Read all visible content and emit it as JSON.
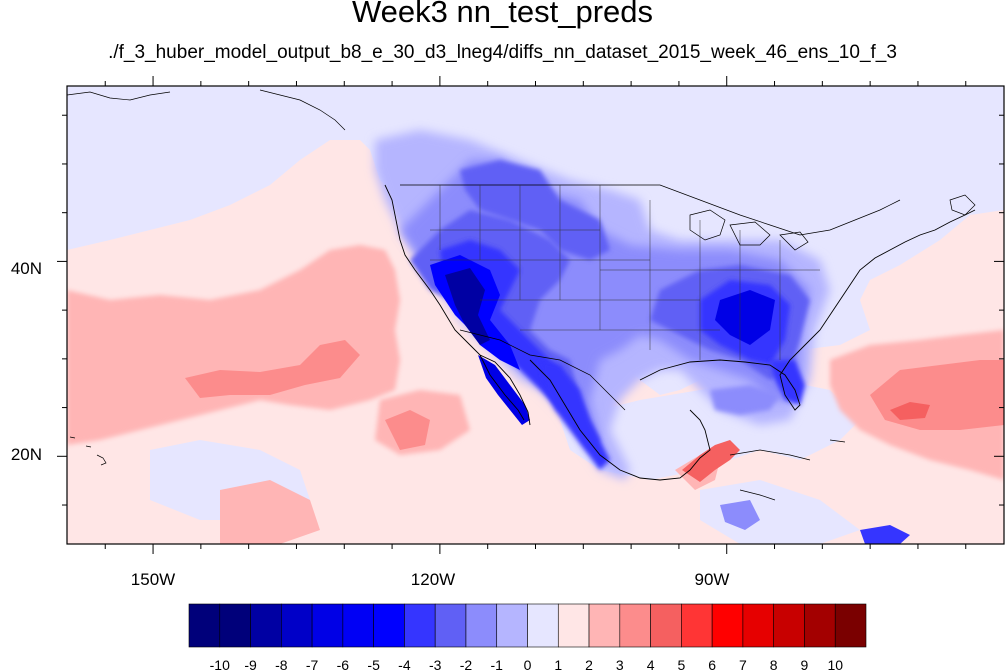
{
  "title": "Week3 nn_test_preds",
  "subtitle": "./f_3_huber_model_output_b8_e_30_d3_lneg4/diffs_nn_dataset_2015_week_46_ens_10_f_3",
  "map": {
    "lon_range": [
      -159,
      -61
    ],
    "lat_range": [
      11,
      58
    ],
    "lon_tick_labels": [
      "150W",
      "120W",
      "90W"
    ],
    "lat_tick_labels": [
      "40N",
      "20N"
    ]
  },
  "colorbar": {
    "labels": [
      "-10",
      "-9",
      "-8",
      "-7",
      "-6",
      "-5",
      "-4",
      "-3",
      "-2",
      "-1",
      "0",
      "1",
      "2",
      "3",
      "4",
      "5",
      "6",
      "7",
      "8",
      "9",
      "10"
    ],
    "colors": [
      "#00007a",
      "#0000a3",
      "#0000c8",
      "#0000e6",
      "#0000f5",
      "#0000ff",
      "#3535ff",
      "#6060f5",
      "#8c8cfc",
      "#b5b5ff",
      "#e6e6ff",
      "#ffe6e6",
      "#ffb5b5",
      "#fc8c8c",
      "#f56060",
      "#ff3535",
      "#ff0000",
      "#e60000",
      "#c80000",
      "#a30000",
      "#7a0000"
    ]
  }
}
